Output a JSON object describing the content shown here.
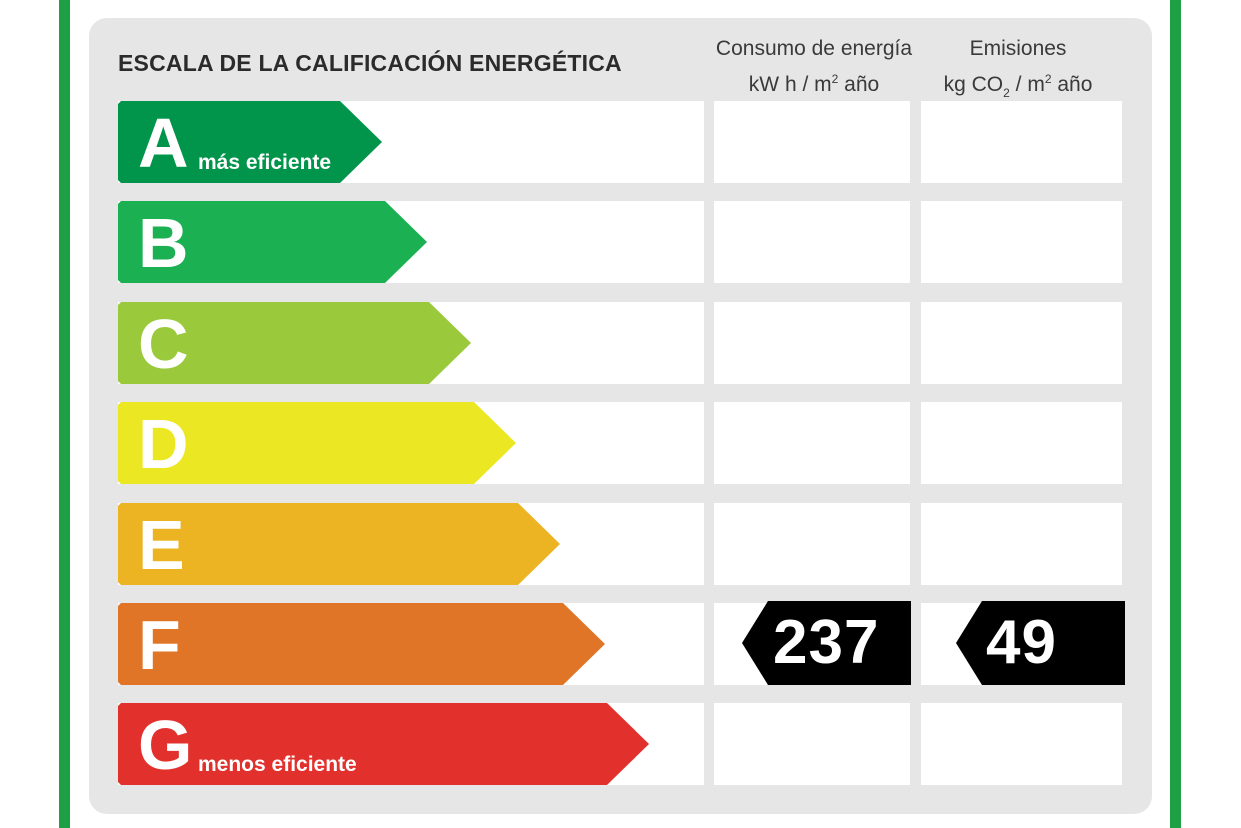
{
  "title": "ESCALA DE LA CALIFICACIÓN ENERGÉTICA",
  "columns": {
    "consumo": {
      "line1": "Consumo de energía",
      "line2_pre": "kW h  / m",
      "line2_sup": "2",
      "line2_post": " año"
    },
    "emisiones": {
      "line1": "Emisiones",
      "line2_pre": "kg CO",
      "line2_sub": "2",
      "line2_mid": "  / m",
      "line2_sup": "2",
      "line2_post": " año"
    }
  },
  "ratings": [
    {
      "letter": "A",
      "sublabel": "más eficiente",
      "color": "#00954a"
    },
    {
      "letter": "B",
      "sublabel": "",
      "color": "#1bb152"
    },
    {
      "letter": "C",
      "sublabel": "",
      "color": "#9bc93c"
    },
    {
      "letter": "D",
      "sublabel": "",
      "color": "#ebe823"
    },
    {
      "letter": "E",
      "sublabel": "",
      "color": "#ecb322"
    },
    {
      "letter": "F",
      "sublabel": "",
      "color": "#e07528"
    },
    {
      "letter": "G",
      "sublabel": "menos eficiente",
      "color": "#e2312c"
    }
  ],
  "result": {
    "rating": "F",
    "consumo": "237",
    "emisiones": "49",
    "indicator_color": "#000000"
  },
  "border_color": "#1fa045",
  "panel_color": "#e6e6e6"
}
